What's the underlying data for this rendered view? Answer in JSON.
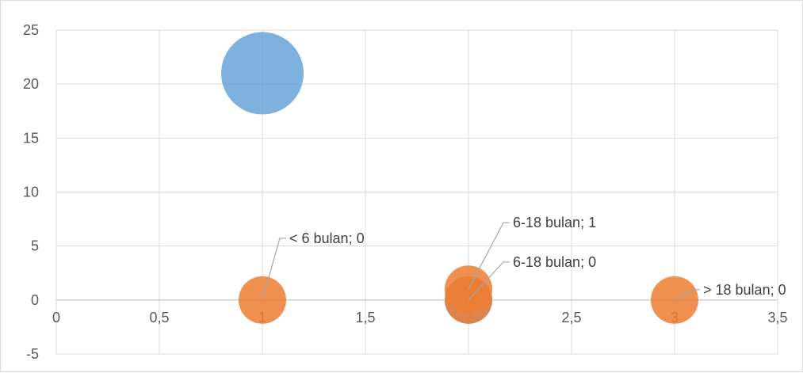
{
  "chart_data": {
    "type": "scatter",
    "subtype": "bubble",
    "xlim": [
      0,
      3.5
    ],
    "ylim": [
      -5,
      25
    ],
    "x_ticks": [
      0,
      0.5,
      1,
      1.5,
      2,
      2.5,
      3,
      3.5
    ],
    "y_ticks": [
      -5,
      0,
      5,
      10,
      15,
      20,
      25
    ],
    "x_tick_labels": [
      "0",
      "0,5",
      "1",
      "1,5",
      "2",
      "2,5",
      "3",
      "3,5"
    ],
    "y_tick_labels": [
      "-5",
      "0",
      "5",
      "10",
      "15",
      "20",
      "25"
    ],
    "grid": true,
    "series": [
      {
        "color": "#5B9BD5",
        "points": [
          {
            "x": 1,
            "y": 21,
            "size": 21
          },
          {
            "x": 2,
            "y": 0,
            "size": 1
          }
        ]
      },
      {
        "color": "#ED7D31",
        "points": [
          {
            "x": 1,
            "y": 0,
            "size": 1,
            "label": "< 6 bulan; 0"
          },
          {
            "x": 2,
            "y": 1,
            "size": 1,
            "label": "6-18 bulan; 1"
          },
          {
            "x": 2,
            "y": 0,
            "size": 1,
            "label": "6-18 bulan; 0"
          },
          {
            "x": 3,
            "y": 0,
            "size": 1,
            "label": "> 18 bulan; 0"
          }
        ]
      }
    ]
  }
}
